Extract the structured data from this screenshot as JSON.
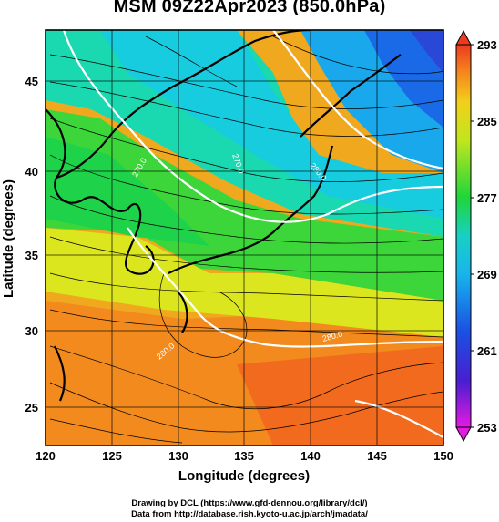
{
  "title": "MSM 09Z22Apr2023 (850.0hPa)",
  "chart_data": {
    "type": "heatmap",
    "title": "MSM 09Z22Apr2023 (850.0hPa)",
    "xlabel": "Longitude (degrees)",
    "ylabel": "Latitude  (degrees)",
    "xlim": [
      120,
      150
    ],
    "ylim": [
      22.4,
      47.6
    ],
    "x_ticks": [
      "120",
      "125",
      "130",
      "135",
      "140",
      "145",
      "150"
    ],
    "y_ticks": [
      "25",
      "30",
      "35",
      "40",
      "45"
    ],
    "colorbar": {
      "range": [
        253,
        293
      ],
      "ticks": [
        "253",
        "261",
        "269",
        "277",
        "285",
        "293"
      ],
      "colors": [
        "#e41ae4",
        "#3a2ad2",
        "#1a6ae8",
        "#18c8e8",
        "#16d690",
        "#1ed236",
        "#aee61e",
        "#f0e41a",
        "#f69a1e",
        "#f0401e"
      ]
    },
    "contour_labels": [
      "270.0",
      "270.0",
      "280.0",
      "280.0",
      "280.0"
    ],
    "grid": true,
    "features": [
      "coastlines",
      "streamlines",
      "temperature-contours"
    ]
  },
  "credits": {
    "line1": "Drawing by DCL (https://www.gfd-dennou.org/library/dcl/)",
    "line2": "Data from http://database.rish.kyoto-u.ac.jp/arch/jmadata/"
  }
}
